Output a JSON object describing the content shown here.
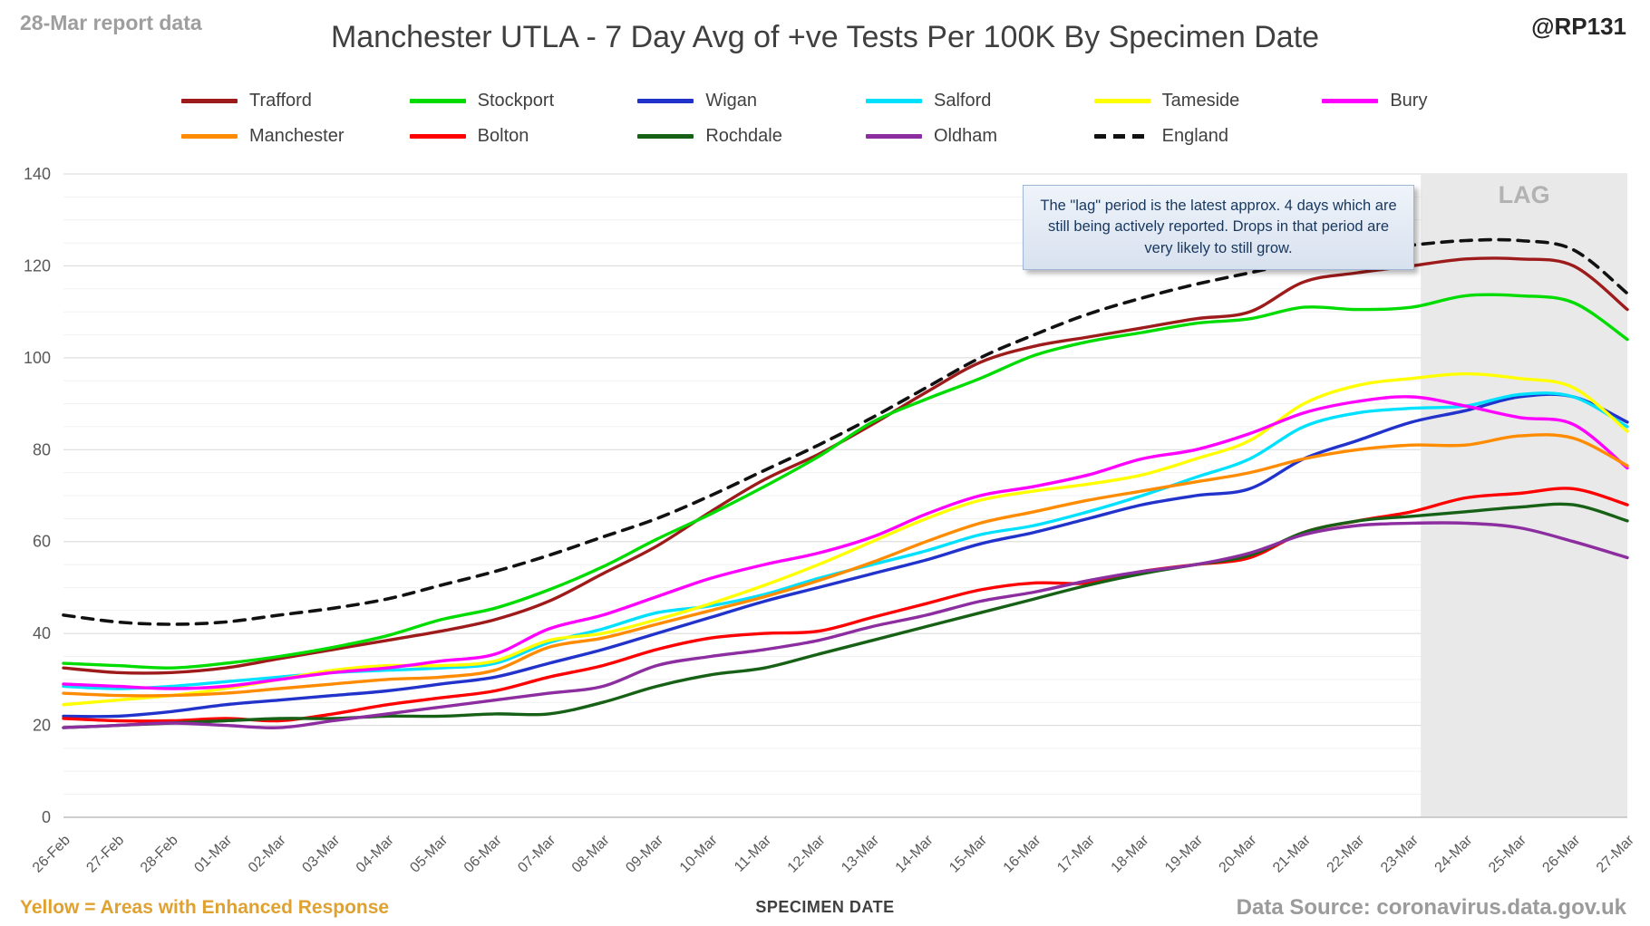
{
  "header": {
    "report_label": "28-Mar report data",
    "title": "Manchester UTLA - 7 Day Avg of +ve Tests Per 100K By Specimen Date",
    "handle": "@RP131"
  },
  "annotation": {
    "text": "The \"lag\" period is the latest approx. 4 days which are still being actively reported. Drops in that period are very likely to still grow."
  },
  "footer": {
    "left_note": "Yellow = Areas with Enhanced Response",
    "xlabel": "SPECIMEN DATE",
    "source": "Data Source: coronavirus.data.gov.uk"
  },
  "chart_data": {
    "type": "line",
    "title": "Manchester UTLA - 7 Day Avg of +ve Tests Per 100K By Specimen Date",
    "xlabel": "SPECIMEN DATE",
    "ylabel": "",
    "ylim": [
      0,
      140
    ],
    "yticks": [
      0,
      20,
      40,
      60,
      80,
      100,
      120,
      140
    ],
    "grid": "horizontal, minor every 5, major every 20",
    "legend_position": "top",
    "lag_band": {
      "starts_after": "23-Mar",
      "label": "LAG",
      "fill": "#e9e9e9"
    },
    "x": [
      "26-Feb",
      "27-Feb",
      "28-Feb",
      "01-Mar",
      "02-Mar",
      "03-Mar",
      "04-Mar",
      "05-Mar",
      "06-Mar",
      "07-Mar",
      "08-Mar",
      "09-Mar",
      "10-Mar",
      "11-Mar",
      "12-Mar",
      "13-Mar",
      "14-Mar",
      "15-Mar",
      "16-Mar",
      "17-Mar",
      "18-Mar",
      "19-Mar",
      "20-Mar",
      "21-Mar",
      "22-Mar",
      "23-Mar",
      "24-Mar",
      "25-Mar",
      "26-Mar",
      "27-Mar"
    ],
    "series": [
      {
        "name": "Trafford",
        "color": "#9e1b1b",
        "dash": false,
        "values": [
          32.5,
          31.5,
          31.5,
          32.5,
          34.5,
          36.5,
          38.5,
          40.5,
          43,
          47,
          53,
          59,
          66.5,
          73.5,
          79,
          85.5,
          92.5,
          99,
          102.5,
          104.5,
          106.5,
          108.5,
          110,
          116.5,
          118.5,
          120,
          121.5,
          121.5,
          120,
          110.5
        ]
      },
      {
        "name": "Stockport",
        "color": "#00dc00",
        "dash": false,
        "values": [
          33.5,
          33,
          32.5,
          33.5,
          35,
          37,
          39.5,
          43,
          45.5,
          49.5,
          54.5,
          60.5,
          66,
          72,
          78.5,
          86,
          91,
          95.5,
          100.5,
          103.5,
          105.5,
          107.5,
          108.5,
          111,
          110.5,
          111,
          113.5,
          113.5,
          112,
          104
        ]
      },
      {
        "name": "Wigan",
        "color": "#2233cc",
        "dash": false,
        "values": [
          22,
          22,
          23,
          24.5,
          25.5,
          26.5,
          27.5,
          29,
          30.5,
          33.5,
          36.5,
          40,
          43.5,
          47,
          50,
          53,
          56,
          59.5,
          62,
          65,
          68,
          70,
          71.5,
          78,
          82,
          86,
          88.5,
          91.5,
          91.5,
          86
        ]
      },
      {
        "name": "Salford",
        "color": "#00e1ff",
        "dash": false,
        "values": [
          28.5,
          28,
          28.5,
          29.5,
          30.5,
          31.5,
          32,
          32.5,
          33.5,
          38,
          41,
          44.5,
          46,
          48.5,
          52,
          55,
          58,
          61.5,
          63.5,
          66.5,
          70,
          74,
          78,
          85,
          88,
          89,
          89.5,
          92,
          91.5,
          85
        ]
      },
      {
        "name": "Tameside",
        "color": "#ffff00",
        "dash": false,
        "values": [
          24.5,
          25.5,
          26.5,
          28,
          30,
          32,
          33,
          33,
          34,
          38.5,
          40,
          43,
          46.5,
          50.5,
          55,
          60,
          65,
          69,
          71,
          72.5,
          74.5,
          78,
          82,
          90,
          94,
          95.5,
          96.5,
          95.5,
          93.5,
          84
        ]
      },
      {
        "name": "Bury",
        "color": "#ff00ff",
        "dash": false,
        "values": [
          29,
          28.5,
          28,
          28.5,
          30,
          31.5,
          32.5,
          34,
          35.5,
          41,
          44,
          48,
          52,
          55,
          57.5,
          61,
          66,
          70,
          72,
          74.5,
          78,
          80,
          83.5,
          88,
          90.5,
          91.5,
          89.5,
          87,
          85.5,
          76
        ]
      },
      {
        "name": "Manchester",
        "color": "#ff8c00",
        "dash": false,
        "values": [
          27,
          26.5,
          26.5,
          27,
          28,
          29,
          30,
          30.5,
          32,
          37,
          39,
          42,
          45,
          48,
          51.5,
          55.5,
          60,
          64,
          66.5,
          69,
          71,
          73,
          75,
          78,
          80,
          81,
          81,
          83,
          82.5,
          76.5
        ]
      },
      {
        "name": "Bolton",
        "color": "#fe0000",
        "dash": false,
        "values": [
          21.5,
          21,
          21,
          21.5,
          21,
          22.5,
          24.5,
          26,
          27.5,
          30.5,
          33,
          36.5,
          39,
          40,
          40.5,
          43.5,
          46.5,
          49.5,
          51,
          51,
          53.5,
          55,
          56.5,
          62,
          64.5,
          66.5,
          69.5,
          70.5,
          71.5,
          68
        ]
      },
      {
        "name": "Rochdale",
        "color": "#176117",
        "dash": false,
        "values": [
          19.5,
          20,
          20.5,
          21,
          21.5,
          21.5,
          22,
          22,
          22.5,
          22.5,
          25,
          28.5,
          31,
          32.5,
          35.5,
          38.5,
          41.5,
          44.5,
          47.5,
          50.5,
          53,
          55,
          57,
          62,
          64.5,
          65.5,
          66.5,
          67.5,
          68,
          64.5
        ]
      },
      {
        "name": "Oldham",
        "color": "#8c2da0",
        "dash": false,
        "values": [
          19.5,
          20,
          20.5,
          20,
          19.5,
          21,
          22.5,
          24,
          25.5,
          27,
          28.5,
          33,
          35,
          36.5,
          38.5,
          41.5,
          44,
          47,
          49,
          51.5,
          53.5,
          55,
          57.5,
          61.5,
          63.5,
          64,
          64,
          63,
          60,
          56.5
        ]
      },
      {
        "name": "England",
        "color": "#111111",
        "dash": true,
        "values": [
          44,
          42.5,
          42,
          42.5,
          44,
          45.5,
          47.5,
          50.5,
          53.5,
          57,
          61,
          65,
          70,
          75.5,
          81,
          87,
          93.5,
          100,
          105,
          109.5,
          113,
          116,
          118.5,
          121,
          123,
          124.5,
          125.5,
          125.5,
          123.5,
          114
        ]
      }
    ]
  }
}
